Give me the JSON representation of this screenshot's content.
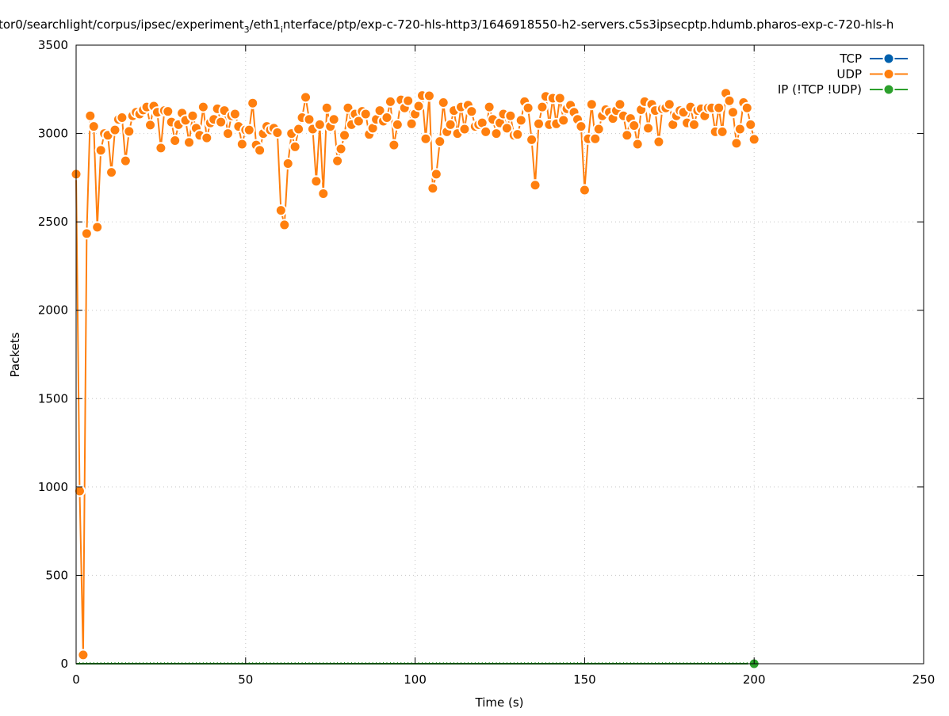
{
  "chart_data": {
    "type": "line",
    "title": "tor0/searchlight/corpus/ipsec/experiment_3/eth1_interface/ptp/exp-c-720-hls-http3/1646918550-h2-servers.c5s3ipsecptp.hdumb.pharos-exp-c-720-hls-h",
    "title_parts": [
      "tor0/searchlight/corpus/ipsec/experiment",
      "3",
      "/eth1",
      "i",
      "nterface/ptp/exp-c-720-hls-http3/1646918550-h2-servers.c5s3ipsecptp.hdumb.pharos-exp-c-720-hls-h"
    ],
    "xlabel": "Time (s)",
    "ylabel": "Packets",
    "xlim": [
      0,
      250
    ],
    "ylim": [
      0,
      3500
    ],
    "xticks": [
      0,
      50,
      100,
      150,
      200,
      250
    ],
    "yticks": [
      0,
      500,
      1000,
      1500,
      2000,
      2500,
      3000,
      3500
    ],
    "grid": true,
    "legend_position": "top-right",
    "sample_time_span": [
      0,
      200
    ],
    "series": [
      {
        "name": "TCP",
        "color": "#0060ad",
        "values": "all 0"
      },
      {
        "name": "UDP",
        "color": "#ff7f0e",
        "values": [
          2770,
          977,
          50,
          2434,
          3100,
          3040,
          2470,
          2905,
          3000,
          2990,
          2780,
          3020,
          3080,
          3090,
          2845,
          3012,
          3100,
          3120,
          3110,
          3133,
          3150,
          3048,
          3155,
          3120,
          2918,
          3130,
          3125,
          3065,
          2960,
          3050,
          3115,
          3075,
          2950,
          3100,
          3030,
          2990,
          3150,
          2975,
          3060,
          3080,
          3140,
          3065,
          3130,
          3000,
          3100,
          3110,
          3040,
          2940,
          3020,
          3020,
          3172,
          2935,
          2905,
          3000,
          3040,
          3020,
          3030,
          3005,
          2565,
          2483,
          2830,
          3000,
          2925,
          3025,
          3090,
          3205,
          3080,
          3025,
          2730,
          3050,
          2660,
          3145,
          3040,
          3080,
          2845,
          2913,
          2990,
          3145,
          3050,
          3110,
          3070,
          3125,
          3110,
          2995,
          3030,
          3080,
          3130,
          3070,
          3090,
          3180,
          2935,
          3050,
          3190,
          3145,
          3185,
          3055,
          3110,
          3155,
          3215,
          2970,
          3213,
          2690,
          2770,
          2955,
          3175,
          3010,
          3050,
          3130,
          3000,
          3150,
          3025,
          3160,
          3125,
          3040,
          3050,
          3060,
          3010,
          3150,
          3080,
          3000,
          3060,
          3110,
          3030,
          3100,
          2990,
          2995,
          3075,
          3180,
          3145,
          2965,
          2708,
          3055,
          3150,
          3210,
          3050,
          3200,
          3055,
          3200,
          3075,
          3140,
          3160,
          3120,
          3080,
          3040,
          2680,
          2970,
          3165,
          2970,
          3025,
          3100,
          3135,
          3120,
          3085,
          3130,
          3165,
          3100,
          2990,
          3085,
          3045,
          2940,
          3135,
          3180,
          3030,
          3165,
          3130,
          2953,
          3140,
          3145,
          3165,
          3050,
          3100,
          3130,
          3120,
          3060,
          3150,
          3050,
          3130,
          3140,
          3100,
          3145,
          3145,
          3010,
          3145,
          3010,
          3228,
          3185,
          3120,
          2945,
          3025,
          3175,
          3145,
          3050,
          2967
        ]
      },
      {
        "name": "IP (!TCP  !UDP)",
        "color": "#2ca02c",
        "values": "all 0"
      }
    ]
  }
}
